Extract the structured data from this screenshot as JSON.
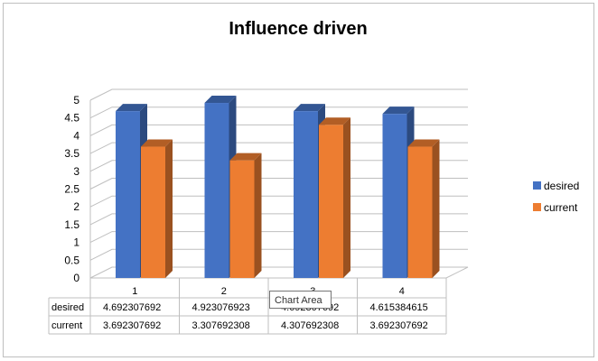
{
  "chart_data": {
    "type": "bar",
    "title": "Influence driven",
    "categories": [
      "1",
      "2",
      "3",
      "4"
    ],
    "series": [
      {
        "name": "desired",
        "values": [
          4.692307692,
          4.923076923,
          4.692307692,
          4.615384615
        ],
        "labels": [
          "4.692307692",
          "4.923076923",
          "4.692307692",
          "4.615384615"
        ],
        "color": "#4472C4"
      },
      {
        "name": "current",
        "values": [
          3.692307692,
          3.307692308,
          4.307692308,
          3.692307692
        ],
        "labels": [
          "3.692307692",
          "3.307692308",
          "4.307692308",
          "3.692307692"
        ],
        "color": "#ED7D31"
      }
    ],
    "y_ticks": [
      "0",
      "0.5",
      "1",
      "1.5",
      "2",
      "2.5",
      "3",
      "3.5",
      "4",
      "4.5",
      "5"
    ],
    "ylim": [
      0,
      5
    ],
    "grid": true,
    "legend_position": "right",
    "data_table": true
  },
  "tooltip": {
    "text": "Chart Area"
  }
}
